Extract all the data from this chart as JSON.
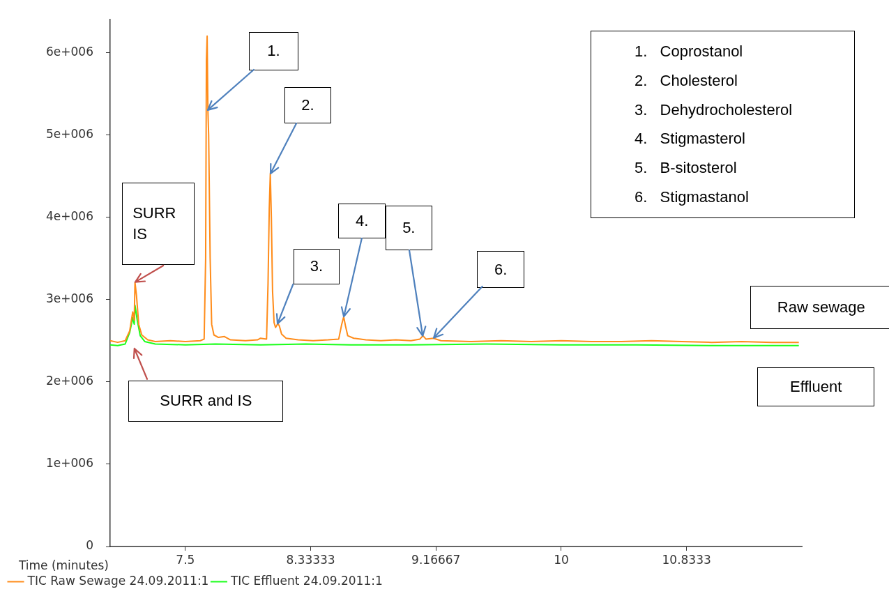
{
  "chart_data": {
    "type": "line",
    "xlabel": "Time (minutes)",
    "xlim": [
      7.0,
      11.6
    ],
    "xticks": [
      7.5,
      8.33333,
      9.16667,
      10,
      10.8333
    ],
    "ylim": [
      0,
      6400000
    ],
    "yticks": [
      0,
      {
        "value": 1000000,
        "label": "1e+006"
      },
      {
        "value": 2000000,
        "label": "2e+006"
      },
      {
        "value": 3000000,
        "label": "3e+006"
      },
      {
        "value": 4000000,
        "label": "4e+006"
      },
      {
        "value": 5000000,
        "label": "5e+006"
      },
      {
        "value": 6000000,
        "label": "6e+006"
      }
    ],
    "grid": false,
    "legend": "bottom",
    "marker": "none",
    "line_style": "solid",
    "series": [
      {
        "name": "TIC Raw Sewage 24.09.2011:1",
        "color": "#ff8c1a",
        "x": [
          7.0,
          7.05,
          7.1,
          7.13,
          7.15,
          7.16,
          7.165,
          7.175,
          7.19,
          7.21,
          7.25,
          7.3,
          7.4,
          7.5,
          7.6,
          7.625,
          7.635,
          7.64,
          7.645,
          7.65,
          7.655,
          7.665,
          7.675,
          7.69,
          7.72,
          7.76,
          7.8,
          7.9,
          7.98,
          8.0,
          8.04,
          8.05,
          8.058,
          8.065,
          8.072,
          8.08,
          8.09,
          8.1,
          8.115,
          8.125,
          8.14,
          8.17,
          8.25,
          8.35,
          8.45,
          8.52,
          8.54,
          8.553,
          8.565,
          8.58,
          8.62,
          8.7,
          8.8,
          8.9,
          9.0,
          9.06,
          9.08,
          9.1,
          9.15,
          9.2,
          9.4,
          9.6,
          9.8,
          10.0,
          10.2,
          10.4,
          10.6,
          10.8,
          11.0,
          11.2,
          11.4,
          11.58
        ],
        "values": [
          2500000,
          2480000,
          2500000,
          2620000,
          2850000,
          2750000,
          3210000,
          3050000,
          2700000,
          2570000,
          2510000,
          2490000,
          2500000,
          2490000,
          2500000,
          2520000,
          3500000,
          5900000,
          6200000,
          5300000,
          5000000,
          3500000,
          2700000,
          2570000,
          2540000,
          2550000,
          2510000,
          2500000,
          2510000,
          2530000,
          2520000,
          3200000,
          4100000,
          4530000,
          4000000,
          3100000,
          2720000,
          2660000,
          2710000,
          2680000,
          2580000,
          2530000,
          2510000,
          2500000,
          2510000,
          2520000,
          2700000,
          2790000,
          2680000,
          2560000,
          2530000,
          2510000,
          2500000,
          2510000,
          2500000,
          2520000,
          2560000,
          2520000,
          2530000,
          2500000,
          2490000,
          2500000,
          2490000,
          2500000,
          2490000,
          2490000,
          2500000,
          2490000,
          2480000,
          2490000,
          2480000,
          2480000
        ]
      },
      {
        "name": "TIC Effluent 24.09.2011:1",
        "color": "#1aff1a",
        "x": [
          7.0,
          7.05,
          7.1,
          7.13,
          7.15,
          7.16,
          7.165,
          7.18,
          7.2,
          7.23,
          7.3,
          7.5,
          7.7,
          8.0,
          8.3,
          8.6,
          9.0,
          9.5,
          10.0,
          10.5,
          11.0,
          11.58
        ],
        "values": [
          2450000,
          2440000,
          2460000,
          2600000,
          2780000,
          2700000,
          2930000,
          2750000,
          2560000,
          2490000,
          2460000,
          2450000,
          2460000,
          2450000,
          2460000,
          2450000,
          2450000,
          2460000,
          2450000,
          2450000,
          2440000,
          2440000
        ]
      }
    ],
    "annotations": [
      {
        "text": "SURR IS",
        "x": 7.165,
        "y": 3210000
      },
      "SURR and IS",
      {
        "text": "1.",
        "x": 7.65,
        "y": 5300000
      },
      {
        "text": "2.",
        "x": 8.065,
        "y": 4530000
      },
      {
        "text": "3.",
        "x": 8.115,
        "y": 2710000
      },
      {
        "text": "4.",
        "x": 8.553,
        "y": 2790000
      },
      {
        "text": "5.",
        "x": 9.08,
        "y": 2560000
      },
      {
        "text": "6.",
        "x": 9.15,
        "y": 2530000
      },
      "Raw sewage",
      "Effluent",
      "1.   Coprostanol",
      "2.   Cholesterol",
      "3.   Dehydrocholesterol",
      "4.   Stigmasterol",
      "5.   B-sitosterol",
      "6.   Stigmastanol"
    ]
  }
}
